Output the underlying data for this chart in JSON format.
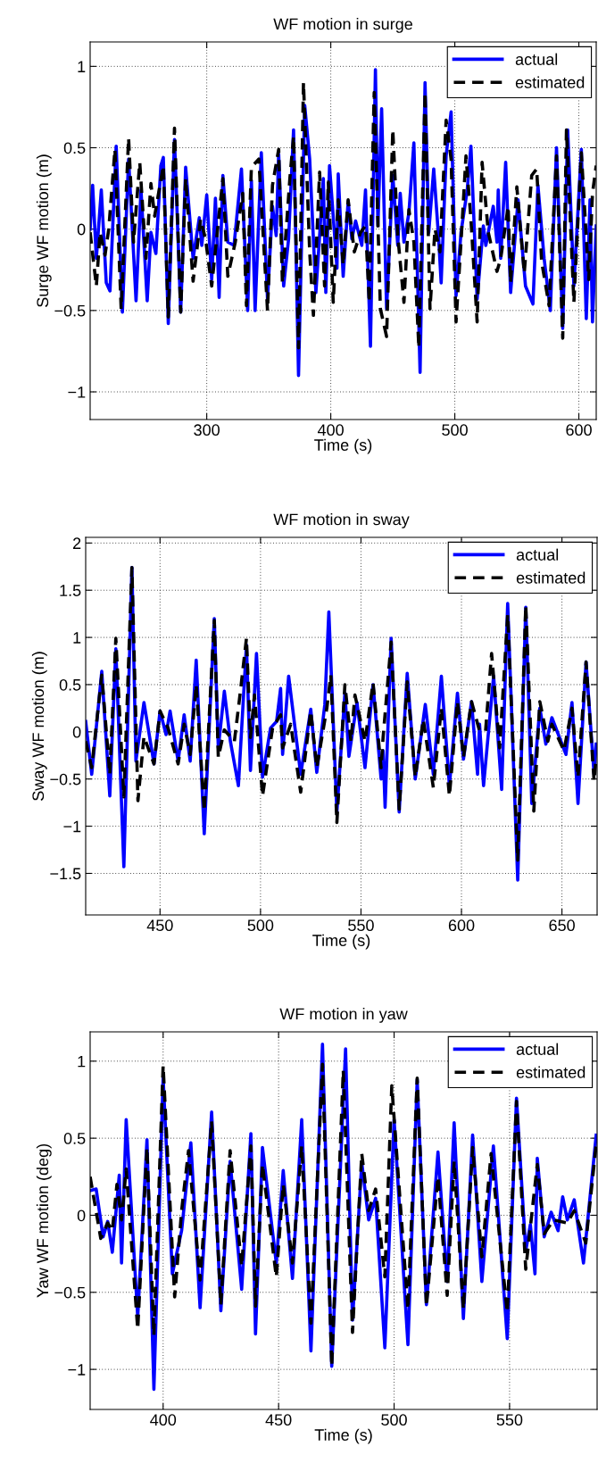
{
  "chart_data": [
    {
      "type": "line",
      "title": "WF motion in surge",
      "xlabel": "Time (s)",
      "ylabel": "Surge WF motion (m)",
      "xlim": [
        206,
        614
      ],
      "ylim": [
        -1.17,
        1.15
      ],
      "xticks": [
        300,
        400,
        500,
        600
      ],
      "yticks": [
        {
          "value": -1,
          "label": "−1"
        },
        {
          "value": -0.5,
          "label": "−0.5"
        },
        0,
        0.5,
        1
      ],
      "grid": true,
      "legend": "top right",
      "series": [
        {
          "name": "actual",
          "color": "#0000ff",
          "line_style": "solid",
          "x": [
            206,
            208,
            211,
            215,
            219,
            222,
            227,
            232,
            237,
            243,
            247,
            252,
            255,
            259,
            263,
            265,
            269,
            274,
            279,
            283,
            289,
            294,
            296,
            300,
            304,
            307,
            310,
            313,
            317,
            322,
            328,
            333,
            336,
            339,
            344,
            349,
            353,
            356,
            358,
            362,
            366,
            370,
            374,
            379,
            383,
            388,
            394,
            396,
            399,
            405,
            406,
            410,
            414,
            417,
            420,
            425,
            428,
            432,
            436,
            438,
            441,
            445,
            450,
            454,
            456,
            459,
            463,
            467,
            472,
            476,
            479,
            483,
            487,
            489,
            493,
            497,
            501,
            505,
            510,
            513,
            518,
            523,
            525,
            531,
            534,
            535,
            537,
            541,
            545,
            551,
            557,
            563,
            567,
            572,
            577,
            582,
            587,
            591,
            596,
            602,
            606,
            609,
            611,
            614
          ],
          "values": [
            0,
            0.27,
            -0.18,
            0.24,
            -0.33,
            -0.38,
            0.51,
            -0.51,
            0.43,
            -0.44,
            0.24,
            -0.44,
            -0.02,
            -0.15,
            0.39,
            0.44,
            -0.58,
            0.55,
            -0.51,
            0.38,
            -0.18,
            0.07,
            -0.1,
            0.21,
            -0.31,
            0.19,
            -0.42,
            0.33,
            -0.08,
            -0.1,
            0.37,
            -0.5,
            0.3,
            -0.5,
            0.47,
            -0.43,
            0.14,
            -0.04,
            0.46,
            -0.35,
            -0.06,
            0.61,
            -0.9,
            0.76,
            0.43,
            -0.39,
            0.31,
            -0.39,
            0.39,
            -0.24,
            0.34,
            -0.29,
            0.17,
            -0.06,
            0.05,
            -0.1,
            0.24,
            -0.72,
            0.98,
            0.02,
            0.74,
            -0.49,
            0.33,
            -0.1,
            0.22,
            -0.08,
            0.1,
            0.53,
            -0.88,
            0.9,
            -0.02,
            0.37,
            -0.06,
            -0.33,
            0.45,
            0.72,
            -0.41,
            -0.02,
            0.24,
            0.51,
            -0.43,
            0.02,
            -0.1,
            0.14,
            -0.08,
            0.24,
            -0.18,
            0.41,
            -0.39,
            0.18,
            -0.35,
            -0.46,
            0.27,
            -0.18,
            -0.5,
            0.5,
            -0.61,
            0.61,
            -0.35,
            0.49,
            -0.55,
            0.18,
            -0.57,
            0.02
          ]
        },
        {
          "name": "estimated",
          "color": "#000000",
          "line_style": "dashed",
          "x": [
            206,
            211,
            214,
            218,
            221,
            226,
            231,
            237,
            241,
            246,
            251,
            255,
            258,
            265,
            269,
            274,
            279,
            283,
            289,
            295,
            299,
            304,
            313,
            317,
            323,
            329,
            332,
            336,
            342,
            349,
            353,
            358,
            361,
            367,
            370,
            374,
            378,
            383,
            386,
            391,
            395,
            398,
            402,
            406,
            410,
            414,
            419,
            424,
            428,
            431,
            435,
            440,
            445,
            450,
            454,
            459,
            463,
            467,
            471,
            476,
            480,
            484,
            488,
            493,
            497,
            501,
            505,
            509,
            513,
            518,
            522,
            527,
            534,
            537,
            543,
            545,
            550,
            556,
            562,
            566,
            570,
            576,
            582,
            587,
            590,
            596,
            602,
            608,
            611,
            614
          ],
          "values": [
            -0.02,
            -0.35,
            -0.02,
            -0.16,
            0,
            0.49,
            -0.49,
            0.56,
            -0.08,
            0.41,
            -0.18,
            0.28,
            0.08,
            0.39,
            -0.54,
            0.62,
            -0.51,
            0.31,
            -0.32,
            0.06,
            -0.06,
            -0.35,
            0.31,
            -0.29,
            -0.08,
            0.22,
            -0.47,
            0.38,
            0.43,
            -0.5,
            0.27,
            0.49,
            -0.33,
            0.31,
            0.57,
            -0.73,
            0.9,
            -0.14,
            -0.53,
            0.35,
            -0.35,
            0.29,
            -0.45,
            0.18,
            -0.22,
            0.18,
            -0.14,
            -0.02,
            0.02,
            -0.45,
            0.84,
            -0.49,
            -0.66,
            0.61,
            -0.04,
            -0.45,
            0.12,
            -0.08,
            -0.73,
            0.84,
            -0.49,
            0,
            -0.14,
            0.67,
            0.43,
            -0.57,
            -0.08,
            0.45,
            0.06,
            -0.57,
            0.41,
            -0.02,
            -0.26,
            -0.18,
            0.14,
            -0.33,
            0.26,
            -0.27,
            0.33,
            0.37,
            -0.2,
            -0.47,
            0.45,
            -0.67,
            0.61,
            -0.45,
            0.47,
            -0.31,
            0.22,
            0.39
          ]
        }
      ]
    },
    {
      "type": "line",
      "title": "WF motion in sway",
      "xlabel": "Time (s)",
      "ylabel": "Sway WF motion (m)",
      "xlim": [
        413,
        667.5
      ],
      "ylim": [
        -1.94,
        2.06
      ],
      "xticks": [
        450,
        500,
        550,
        600,
        650
      ],
      "yticks": [
        {
          "value": -1.5,
          "label": "−1.5"
        },
        {
          "value": -1,
          "label": "−1"
        },
        {
          "value": -0.5,
          "label": "−0.5"
        },
        0,
        0.5,
        1,
        1.5,
        2
      ],
      "grid": true,
      "legend": "top right",
      "series": [
        {
          "name": "actual",
          "color": "#0000ff",
          "line_style": "solid",
          "x": [
            413,
            416,
            421,
            425,
            428,
            432,
            436,
            438,
            442,
            447,
            450,
            453,
            455,
            459,
            462,
            465,
            468,
            472,
            477,
            479,
            482,
            485,
            489,
            493,
            495,
            498,
            501,
            505,
            508,
            510,
            511,
            514,
            520,
            525,
            528,
            532,
            534,
            538,
            542,
            544,
            548,
            552,
            556,
            560,
            561,
            562,
            565,
            569,
            573,
            577,
            582,
            586,
            590,
            594,
            598,
            601,
            605,
            608,
            609,
            611,
            616,
            620,
            623,
            628,
            632,
            635,
            639,
            642,
            645,
            652,
            655,
            658,
            662,
            666,
            667
          ],
          "values": [
            0.11,
            -0.45,
            0.64,
            -0.68,
            0.88,
            -1.43,
            1.74,
            -0.31,
            0.31,
            -0.34,
            0.22,
            -0.03,
            0.22,
            -0.31,
            0.18,
            -0.31,
            0.76,
            -1.08,
            1.2,
            -0.17,
            0.43,
            -0.1,
            -0.57,
            0.92,
            -0.41,
            0.83,
            -0.48,
            0.04,
            0.11,
            0.46,
            -0.24,
            0.59,
            -0.45,
            0.24,
            -0.43,
            0.29,
            1.27,
            -0.85,
            0.41,
            -0.26,
            0.31,
            -0.38,
            0.5,
            -0.5,
            -0.2,
            -0.8,
            0.99,
            -0.85,
            0.62,
            -0.5,
            0.29,
            -0.45,
            0.59,
            -0.57,
            0.41,
            -0.29,
            0.32,
            -0.45,
            0.08,
            -0.57,
            0.59,
            -0.61,
            1.36,
            -1.57,
            1.32,
            -0.76,
            0.25,
            -0.13,
            0.15,
            -0.24,
            0.31,
            -0.76,
            0.74,
            -0.45,
            -0.13
          ]
        },
        {
          "name": "estimated",
          "color": "#000000",
          "line_style": "dashed",
          "x": [
            413,
            416,
            421,
            425,
            428,
            432,
            436,
            439,
            442,
            447,
            450,
            454,
            459,
            462,
            465,
            468,
            472,
            477,
            479,
            482,
            487,
            490,
            493,
            495,
            497,
            501,
            506,
            510,
            511,
            515,
            520,
            525,
            528,
            533,
            535,
            538,
            542,
            545,
            547,
            552,
            556,
            560,
            561,
            565,
            569,
            573,
            577,
            581,
            586,
            590,
            594,
            598,
            601,
            605,
            609,
            612,
            615,
            619,
            623,
            628,
            632,
            636,
            639,
            643,
            645,
            651,
            655,
            658,
            662,
            666,
            667
          ],
          "values": [
            -0.1,
            -0.38,
            0.6,
            -0.45,
            0.99,
            -0.69,
            1.74,
            -0.73,
            -0.05,
            -0.34,
            0.22,
            0.04,
            -0.34,
            0.08,
            -0.24,
            0.5,
            -0.84,
            1.18,
            -0.27,
            0.02,
            -0.1,
            0.43,
            0.99,
            -0.06,
            0.39,
            -0.68,
            0.04,
            0.18,
            -0.17,
            0.08,
            -0.64,
            0.22,
            -0.38,
            0.25,
            0.6,
            -0.96,
            0.5,
            -0.1,
            0.39,
            -0.1,
            0.52,
            -0.38,
            -0.06,
            0.95,
            -0.82,
            0.53,
            -0.48,
            0.13,
            -0.59,
            0.25,
            -0.68,
            0.32,
            -0.27,
            0.32,
            0.01,
            0.01,
            0.83,
            -0.17,
            1.24,
            -1.36,
            1.34,
            -0.84,
            0.32,
            -0.1,
            0.08,
            -0.2,
            0.25,
            -0.48,
            0.74,
            -0.52,
            -0.27
          ]
        }
      ]
    },
    {
      "type": "line",
      "title": "WF motion in yaw",
      "xlabel": "Time (s)",
      "ylabel": "Yaw WF motion (deg)",
      "xlim": [
        368.4,
        587.9
      ],
      "ylim": [
        -1.26,
        1.19
      ],
      "xticks": [
        400,
        450,
        500,
        550
      ],
      "yticks": [
        {
          "value": -1,
          "label": "−1"
        },
        {
          "value": -0.5,
          "label": "−0.5"
        },
        0,
        0.5,
        1
      ],
      "grid": true,
      "legend": "top right",
      "series": [
        {
          "name": "actual",
          "color": "#0000ff",
          "line_style": "solid",
          "x": [
            368.4,
            371,
            374,
            376,
            378,
            381,
            382,
            384,
            389,
            393,
            396,
            400,
            404,
            408,
            412,
            416,
            421,
            425,
            429,
            434,
            438,
            440,
            443,
            449,
            452,
            456,
            460,
            464,
            469,
            473,
            479,
            482,
            486,
            489,
            492,
            496,
            500,
            506,
            510,
            514,
            519,
            523,
            526,
            530,
            534,
            538,
            543,
            549,
            553,
            557,
            559,
            561,
            562,
            565,
            568,
            571,
            573,
            575,
            578,
            582,
            587.5
          ],
          "values": [
            0.16,
            0.17,
            -0.14,
            -0.04,
            -0.24,
            0.26,
            -0.31,
            0.62,
            -0.66,
            0.49,
            -1.13,
            0.89,
            -0.38,
            -0.1,
            0.47,
            -0.6,
            0.67,
            -0.62,
            0.35,
            -0.48,
            0.53,
            -0.77,
            0.44,
            -0.31,
            0.29,
            -0.41,
            0.62,
            -0.88,
            1.11,
            -0.98,
            1.08,
            -0.68,
            0.34,
            -0.03,
            0.11,
            -0.86,
            0.62,
            -0.84,
            0.88,
            -0.58,
            0.41,
            -0.43,
            0.6,
            -0.67,
            0.52,
            -0.43,
            0.45,
            -0.8,
            0.76,
            -0.23,
            -0.06,
            -0.38,
            0.37,
            -0.14,
            0.02,
            -0.1,
            0.12,
            -0.03,
            0.1,
            -0.31,
            0.52
          ]
        },
        {
          "name": "estimated",
          "color": "#000000",
          "line_style": "dashed",
          "x": [
            368.4,
            373,
            376,
            378,
            380,
            382,
            384,
            389,
            393,
            396,
            400,
            405,
            408,
            411,
            416,
            421,
            425,
            429,
            434,
            438,
            440,
            443,
            449,
            452,
            456,
            460,
            464,
            469,
            473,
            478,
            482,
            486,
            489,
            492,
            496,
            499,
            506,
            510,
            514,
            519,
            523,
            526,
            530,
            534,
            538,
            542,
            549,
            553,
            557,
            562,
            565,
            569,
            575,
            578,
            583,
            587.5
          ],
          "values": [
            0.25,
            -0.15,
            -0.05,
            -0.1,
            0.2,
            -0.03,
            0.3,
            -0.74,
            0.44,
            -0.78,
            0.97,
            -0.53,
            0.03,
            0.42,
            -0.42,
            0.61,
            -0.58,
            0.42,
            -0.33,
            0.45,
            -0.59,
            0.33,
            -0.4,
            0.2,
            -0.31,
            0.45,
            -0.7,
            0.98,
            -0.98,
            0.94,
            -0.76,
            0.4,
            0.03,
            0.17,
            -0.4,
            0.84,
            -0.61,
            0.89,
            -0.59,
            0.25,
            -0.52,
            0.35,
            -0.61,
            0.44,
            -0.27,
            0.4,
            -0.63,
            0.74,
            -0.35,
            0.33,
            -0.12,
            -0.03,
            -0.05,
            0.03,
            -0.18,
            0.46
          ]
        }
      ]
    }
  ]
}
